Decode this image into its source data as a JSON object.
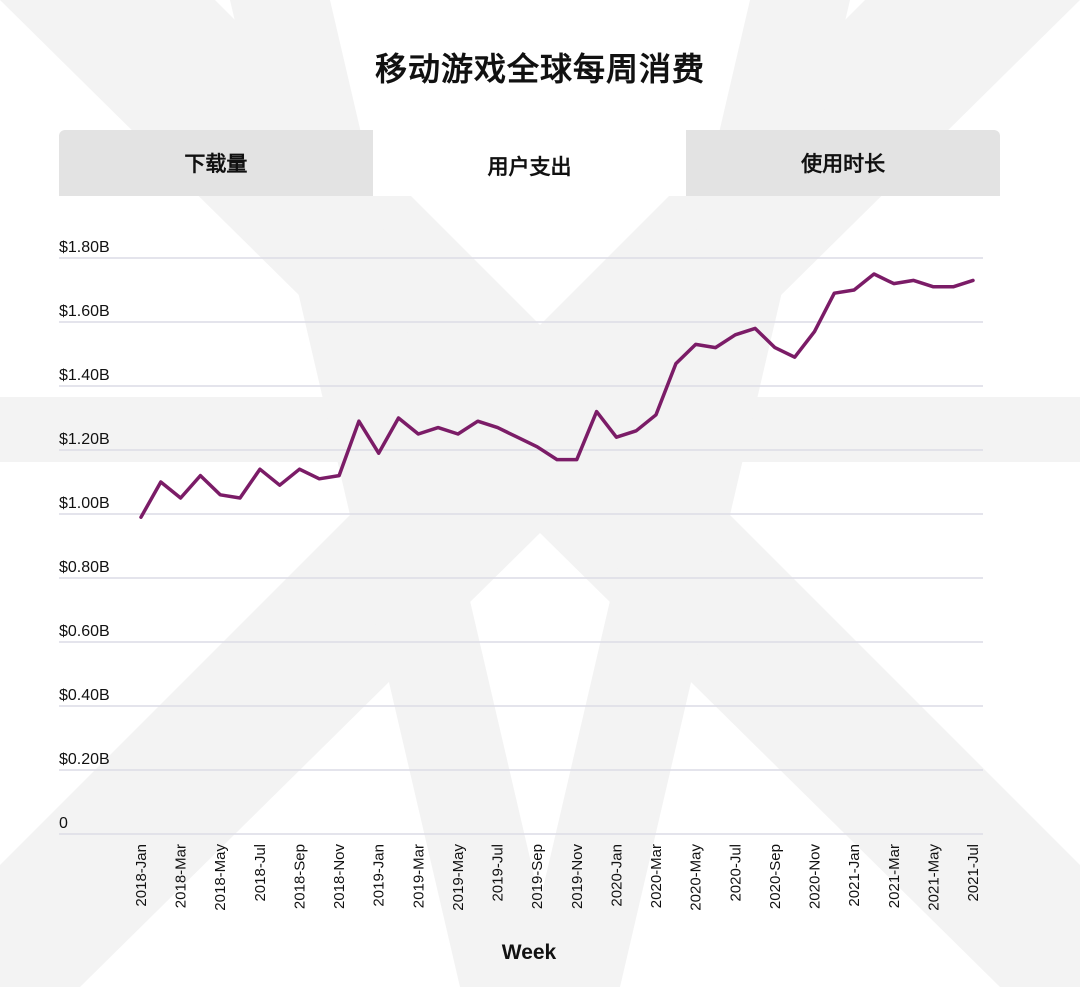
{
  "page_title": "移动游戏全球每周消费",
  "tabs": [
    {
      "label": "下载量",
      "active": false
    },
    {
      "label": "用户支出",
      "active": true
    },
    {
      "label": "使用时长",
      "active": false
    }
  ],
  "colors": {
    "line": "#7b1c67",
    "grid": "#dcdce6",
    "tab_inactive": "#e3e3e3",
    "background_shape": "#f3f3f3"
  },
  "chart_data": {
    "type": "line",
    "title": "移动游戏全球每周消费",
    "xlabel": "Week",
    "ylabel": "",
    "ylim": [
      0,
      1.8
    ],
    "y_ticks": [
      {
        "value": 0,
        "label": "0"
      },
      {
        "value": 0.2,
        "label": "$0.20B"
      },
      {
        "value": 0.4,
        "label": "$0.40B"
      },
      {
        "value": 0.6,
        "label": "$0.60B"
      },
      {
        "value": 0.8,
        "label": "$0.80B"
      },
      {
        "value": 1.0,
        "label": "$1.00B"
      },
      {
        "value": 1.2,
        "label": "$1.20B"
      },
      {
        "value": 1.4,
        "label": "$1.40B"
      },
      {
        "value": 1.6,
        "label": "$1.60B"
      },
      {
        "value": 1.8,
        "label": "$1.80B"
      }
    ],
    "x_tick_labels": [
      "2018-Jan",
      "2018-Mar",
      "2018-May",
      "2018-Jul",
      "2018-Sep",
      "2018-Nov",
      "2019-Jan",
      "2019-Mar",
      "2019-May",
      "2019-Jul",
      "2019-Sep",
      "2019-Nov",
      "2020-Jan",
      "2020-Mar",
      "2020-May",
      "2020-Jul",
      "2020-Sep",
      "2020-Nov",
      "2021-Jan",
      "2021-Mar",
      "2021-May",
      "2021-Jul"
    ],
    "grid": true,
    "series": [
      {
        "values": [
          0.99,
          1.1,
          1.05,
          1.12,
          1.06,
          1.05,
          1.14,
          1.09,
          1.14,
          1.11,
          1.12,
          1.29,
          1.19,
          1.3,
          1.25,
          1.27,
          1.25,
          1.29,
          1.27,
          1.24,
          1.21,
          1.17,
          1.17,
          1.32,
          1.24,
          1.26,
          1.31,
          1.47,
          1.53,
          1.52,
          1.56,
          1.58,
          1.52,
          1.49,
          1.57,
          1.69,
          1.7,
          1.75,
          1.72,
          1.73,
          1.71,
          1.71,
          1.73
        ]
      }
    ]
  }
}
